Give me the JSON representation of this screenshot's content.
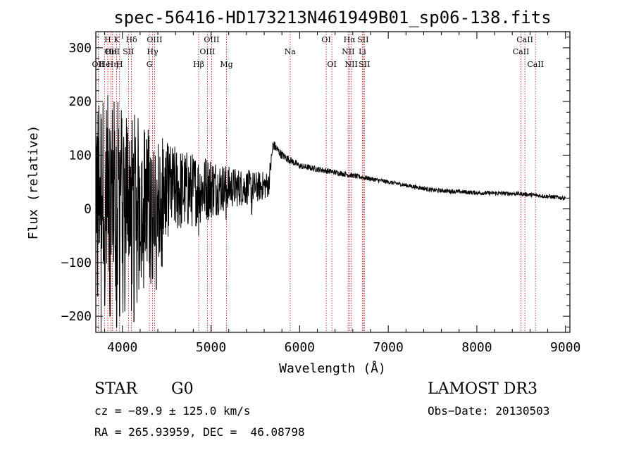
{
  "chart_data": {
    "type": "line",
    "title": "spec-56416-HD173213N461949B01_sp06-138.fits",
    "xlabel": "Wavelength (Å)",
    "ylabel": "Flux (relative)",
    "xlim": [
      3700,
      9050
    ],
    "ylim": [
      -230,
      330
    ],
    "xticks": [
      4000,
      5000,
      6000,
      7000,
      8000,
      9000
    ],
    "xtick_labels": [
      "4000",
      "5000",
      "6000",
      "7000",
      "8000",
      "9000"
    ],
    "yticks": [
      -200,
      -100,
      0,
      100,
      200,
      300
    ],
    "ytick_labels": [
      "−200",
      "−100",
      "0",
      "100",
      "200",
      "300"
    ],
    "grid": false,
    "line_color": "#000000",
    "marker_color": "#cc0000",
    "spectral_lines": [
      {
        "label": "OII",
        "wave": 3727,
        "row": 2
      },
      {
        "label": "Hϵ",
        "wave": 3798,
        "row": 2
      },
      {
        "label": "H",
        "wave": 3835,
        "row": 0
      },
      {
        "label": "OII",
        "wave": 3869,
        "row": 1
      },
      {
        "label": "Hη",
        "wave": 3889,
        "row": 2
      },
      {
        "label": "HeI",
        "wave": 3889,
        "row": 1
      },
      {
        "label": "K",
        "wave": 3934,
        "row": 0
      },
      {
        "label": "H",
        "wave": 3968,
        "row": 2
      },
      {
        "label": "SII",
        "wave": 4069,
        "row": 1
      },
      {
        "label": "Hδ",
        "wave": 4102,
        "row": 0
      },
      {
        "label": "OIII",
        "wave": 4363,
        "row": 0
      },
      {
        "label": "Hγ",
        "wave": 4340,
        "row": 1
      },
      {
        "label": "G",
        "wave": 4305,
        "row": 2
      },
      {
        "label": "Hβ",
        "wave": 4861,
        "row": 2
      },
      {
        "label": "OIII",
        "wave": 4959,
        "row": 1
      },
      {
        "label": "OIII",
        "wave": 5007,
        "row": 0
      },
      {
        "label": "Mg",
        "wave": 5175,
        "row": 2
      },
      {
        "label": "Na",
        "wave": 5893,
        "row": 1
      },
      {
        "label": "OI",
        "wave": 6300,
        "row": 0
      },
      {
        "label": "OI",
        "wave": 6364,
        "row": 2
      },
      {
        "label": "NII",
        "wave": 6548,
        "row": 1
      },
      {
        "label": "Hα",
        "wave": 6563,
        "row": 0
      },
      {
        "label": "NII",
        "wave": 6583,
        "row": 2
      },
      {
        "label": "Li",
        "wave": 6708,
        "row": 1
      },
      {
        "label": "SII",
        "wave": 6716,
        "row": 0
      },
      {
        "label": "SII",
        "wave": 6731,
        "row": 2
      },
      {
        "label": "CaII",
        "wave": 8498,
        "row": 1
      },
      {
        "label": "CaII",
        "wave": 8542,
        "row": 0
      },
      {
        "label": "CaII",
        "wave": 8662,
        "row": 2
      }
    ],
    "spectrum": {
      "x_start": 3700,
      "x_end": 9000,
      "anchors": [
        [
          3700,
          60,
          160
        ],
        [
          4000,
          45,
          160
        ],
        [
          4200,
          40,
          130
        ],
        [
          4500,
          35,
          90
        ],
        [
          4800,
          35,
          70
        ],
        [
          5000,
          40,
          60
        ],
        [
          5200,
          40,
          40
        ],
        [
          5500,
          40,
          30
        ],
        [
          5650,
          45,
          25
        ],
        [
          5700,
          120,
          10
        ],
        [
          5800,
          100,
          8
        ],
        [
          6000,
          80,
          6
        ],
        [
          6500,
          65,
          5
        ],
        [
          7000,
          50,
          4
        ],
        [
          7500,
          35,
          4
        ],
        [
          8000,
          30,
          4
        ],
        [
          8500,
          28,
          4
        ],
        [
          9000,
          20,
          4
        ]
      ],
      "dips": [
        [
          3760,
          -240
        ],
        [
          3800,
          -180
        ],
        [
          3860,
          -200
        ],
        [
          3935,
          -220
        ],
        [
          3968,
          -200
        ],
        [
          4102,
          -190
        ],
        [
          4130,
          -210
        ],
        [
          4340,
          -130
        ],
        [
          4383,
          -150
        ],
        [
          4861,
          -50
        ],
        [
          5170,
          -20
        ],
        [
          5460,
          -10
        ]
      ]
    }
  },
  "footer": {
    "object_class": "STAR",
    "subclass": "G0",
    "cz": "cz = −89.9 ± 125.0 km/s",
    "coords": "RA = 265.93959, DEC =  46.08798",
    "survey": "LAMOST DR3",
    "obs_date": "Obs−Date: 20130503"
  }
}
